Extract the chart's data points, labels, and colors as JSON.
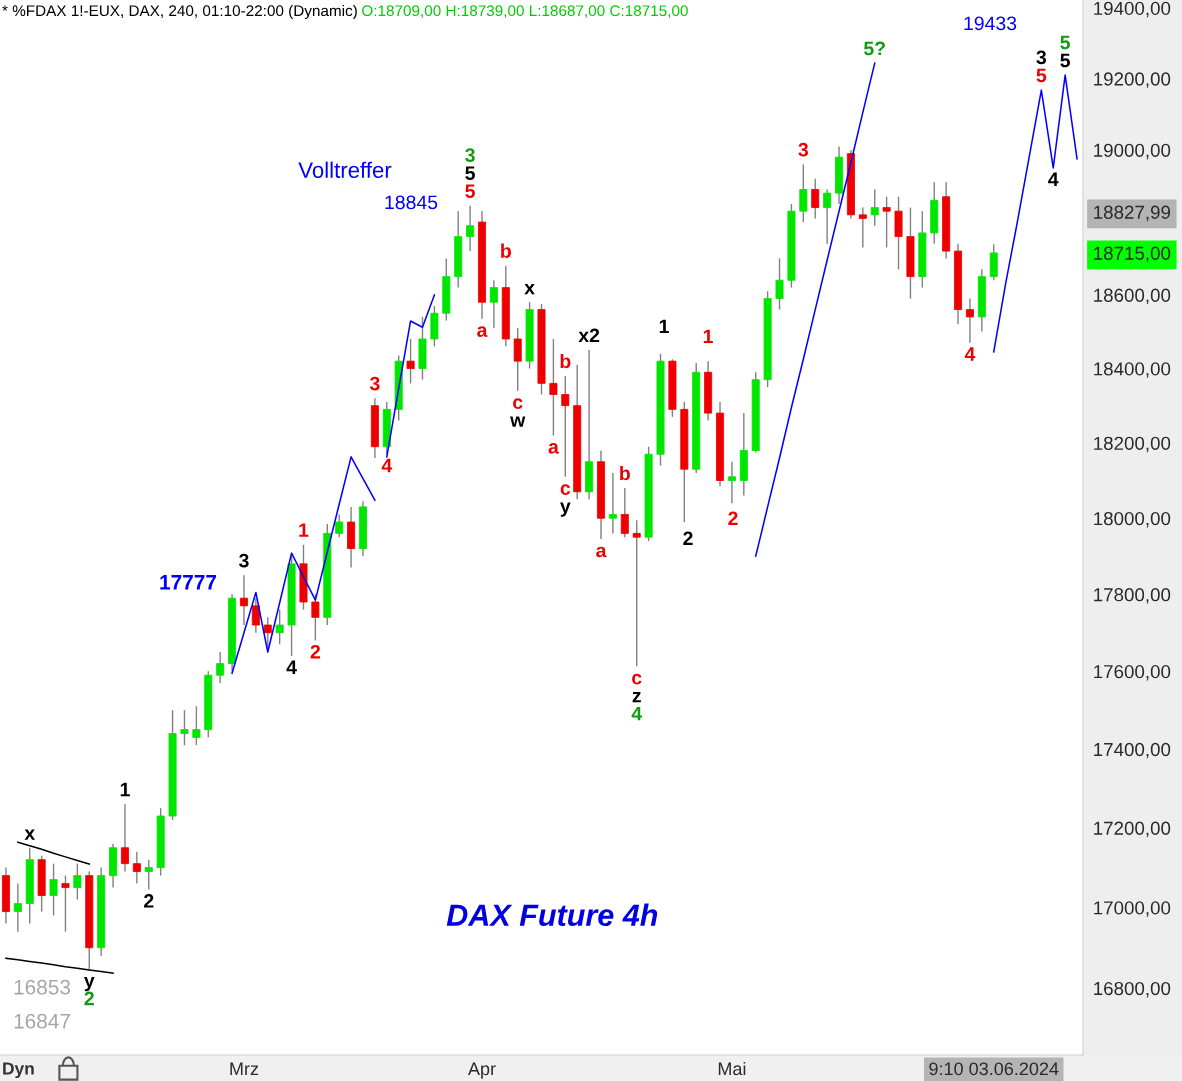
{
  "chart_data": {
    "type": "candlestick",
    "title": "* %FDAX 1!-EUX, DAX, 240, 01:10-22:00 (Dynamic)",
    "subtitle": "DAX Future 4h",
    "categories": [
      null,
      null,
      null,
      null,
      null,
      null,
      null,
      null,
      null,
      null,
      null,
      null,
      null,
      null,
      null,
      null,
      null,
      null,
      null,
      null,
      "Mrz",
      null,
      null,
      null,
      null,
      null,
      null,
      null,
      null,
      null,
      null,
      null,
      null,
      null,
      null,
      null,
      null,
      null,
      null,
      null,
      "Apr",
      null,
      null,
      null,
      null,
      null,
      null,
      null,
      null,
      null,
      null,
      null,
      null,
      null,
      null,
      null,
      null,
      null,
      null,
      null,
      null,
      "Mai",
      null,
      null,
      null,
      null,
      null,
      null,
      null,
      null,
      null,
      null,
      null,
      null,
      null,
      null,
      null,
      null,
      null,
      null,
      null,
      null,
      null,
      "9:10 03.06.2024",
      null,
      null,
      null,
      null,
      null,
      null,
      null
    ],
    "ohlc": [
      [
        17080,
        17100,
        16960,
        16990
      ],
      [
        16990,
        17060,
        16940,
        17010
      ],
      [
        17010,
        17150,
        16960,
        17120
      ],
      [
        17120,
        17130,
        16990,
        17030
      ],
      [
        17030,
        17110,
        16980,
        17070
      ],
      [
        17060,
        17080,
        16940,
        17050
      ],
      [
        17050,
        17110,
        17020,
        17080
      ],
      [
        17080,
        17090,
        16847,
        16900
      ],
      [
        16900,
        17100,
        16880,
        17080
      ],
      [
        17080,
        17160,
        17050,
        17150
      ],
      [
        17150,
        17260,
        17090,
        17110
      ],
      [
        17110,
        17140,
        17060,
        17090
      ],
      [
        17090,
        17120,
        17045,
        17100
      ],
      [
        17100,
        17250,
        17080,
        17230
      ],
      [
        17230,
        17500,
        17220,
        17440
      ],
      [
        17440,
        17500,
        17410,
        17450
      ],
      [
        17430,
        17510,
        17410,
        17450
      ],
      [
        17450,
        17600,
        17430,
        17590
      ],
      [
        17590,
        17650,
        17570,
        17620
      ],
      [
        17620,
        17800,
        17600,
        17790
      ],
      [
        17790,
        17850,
        17720,
        17770
      ],
      [
        17770,
        17790,
        17700,
        17720
      ],
      [
        17720,
        17740,
        17660,
        17700
      ],
      [
        17700,
        17760,
        17670,
        17720
      ],
      [
        17720,
        17900,
        17640,
        17880
      ],
      [
        17880,
        17930,
        17760,
        17780
      ],
      [
        17780,
        17800,
        17680,
        17740
      ],
      [
        17740,
        17985,
        17720,
        17960
      ],
      [
        17960,
        18010,
        17950,
        17990
      ],
      [
        17990,
        18030,
        17870,
        17920
      ],
      [
        17920,
        18045,
        17900,
        18030
      ],
      [
        18300,
        18320,
        18160,
        18190
      ],
      [
        18190,
        18310,
        18170,
        18290
      ],
      [
        18290,
        18435,
        18260,
        18420
      ],
      [
        18420,
        18480,
        18360,
        18400
      ],
      [
        18400,
        18540,
        18370,
        18480
      ],
      [
        18480,
        18570,
        18460,
        18550
      ],
      [
        18550,
        18700,
        18530,
        18650
      ],
      [
        18650,
        18830,
        18620,
        18760
      ],
      [
        18760,
        18845,
        18720,
        18790
      ],
      [
        18800,
        18830,
        18535,
        18580
      ],
      [
        18580,
        18640,
        18510,
        18620
      ],
      [
        18620,
        18680,
        18460,
        18480
      ],
      [
        18480,
        18510,
        18340,
        18420
      ],
      [
        18420,
        18580,
        18400,
        18560
      ],
      [
        18560,
        18575,
        18330,
        18360
      ],
      [
        18360,
        18480,
        18220,
        18330
      ],
      [
        18330,
        18380,
        18110,
        18300
      ],
      [
        18300,
        18410,
        18050,
        18070
      ],
      [
        18070,
        18450,
        18050,
        18150
      ],
      [
        18150,
        18180,
        17945,
        18000
      ],
      [
        18000,
        18120,
        17960,
        18010
      ],
      [
        18010,
        18080,
        17950,
        17960
      ],
      [
        17960,
        17995,
        17613,
        17950
      ],
      [
        17950,
        18190,
        17940,
        18170
      ],
      [
        18170,
        18440,
        18140,
        18420
      ],
      [
        18420,
        18425,
        18270,
        18290
      ],
      [
        18290,
        18310,
        17990,
        18130
      ],
      [
        18130,
        18415,
        18120,
        18390
      ],
      [
        18390,
        18420,
        18260,
        18280
      ],
      [
        18280,
        18310,
        18085,
        18100
      ],
      [
        18100,
        18150,
        18040,
        18110
      ],
      [
        18100,
        18280,
        18060,
        18180
      ],
      [
        18180,
        18390,
        18175,
        18370
      ],
      [
        18370,
        18610,
        18350,
        18590
      ],
      [
        18590,
        18700,
        18560,
        18640
      ],
      [
        18640,
        18850,
        18620,
        18830
      ],
      [
        18830,
        18960,
        18800,
        18890
      ],
      [
        18890,
        18920,
        18810,
        18840
      ],
      [
        18840,
        18890,
        18740,
        18880
      ],
      [
        18880,
        19010,
        18850,
        18980
      ],
      [
        18990,
        19000,
        18810,
        18820
      ],
      [
        18820,
        18840,
        18730,
        18810
      ],
      [
        18820,
        18890,
        18790,
        18840
      ],
      [
        18840,
        18870,
        18730,
        18830
      ],
      [
        18830,
        18870,
        18670,
        18760
      ],
      [
        18760,
        18840,
        18590,
        18650
      ],
      [
        18650,
        18830,
        18620,
        18770
      ],
      [
        18770,
        18910,
        18740,
        18860
      ],
      [
        18870,
        18910,
        18700,
        18720
      ],
      [
        18720,
        18740,
        18520,
        18560
      ],
      [
        18560,
        18590,
        18470,
        18540
      ],
      [
        18540,
        18670,
        18500,
        18650
      ],
      [
        18650,
        18739,
        18640,
        18715
      ],
      null,
      null,
      null,
      null,
      null,
      null,
      null
    ],
    "series": [
      {
        "type": "line",
        "color": "#0000ff",
        "values": [
          null,
          null,
          null,
          null,
          null,
          null,
          null,
          null,
          null,
          null,
          null,
          null,
          null,
          null,
          null,
          null,
          null,
          null,
          null,
          17595,
          17700,
          17805,
          17650,
          17778,
          17908,
          17846,
          17785,
          17911,
          18037,
          18163,
          18105,
          18048,
          null,
          null,
          null,
          null,
          null,
          null,
          null,
          null,
          null,
          null,
          null,
          null,
          null,
          null,
          null,
          null,
          null,
          null,
          null,
          null,
          null,
          null,
          null,
          null,
          null,
          null,
          null,
          null,
          null,
          null,
          null,
          null,
          null,
          null,
          null,
          null,
          null,
          null,
          null,
          null,
          null,
          null,
          null,
          null,
          null,
          null,
          null,
          null,
          null,
          null,
          null,
          null,
          null,
          null,
          null,
          null,
          null,
          null,
          null
        ]
      },
      {
        "type": "line",
        "color": "#0000ff",
        "values": [
          null,
          null,
          null,
          null,
          null,
          null,
          null,
          null,
          null,
          null,
          null,
          null,
          null,
          null,
          null,
          null,
          null,
          null,
          null,
          null,
          null,
          null,
          null,
          null,
          null,
          null,
          null,
          null,
          null,
          null,
          null,
          null,
          18163,
          18346,
          18529,
          18512,
          18600,
          null,
          null,
          null,
          null,
          null,
          null,
          null,
          null,
          null,
          null,
          null,
          null,
          null,
          null,
          null,
          null,
          null,
          null,
          null,
          null,
          null,
          null,
          null,
          null,
          null,
          null,
          null,
          null,
          null,
          null,
          null,
          null,
          null,
          null,
          null,
          null,
          null,
          null,
          null,
          null,
          null,
          null,
          null,
          null,
          null,
          null,
          null,
          null,
          null,
          null,
          null,
          null,
          null,
          null
        ]
      },
      {
        "type": "line",
        "color": "#0000ff",
        "values": [
          null,
          null,
          null,
          null,
          null,
          null,
          null,
          null,
          null,
          null,
          null,
          null,
          null,
          null,
          null,
          null,
          null,
          null,
          null,
          null,
          null,
          null,
          null,
          null,
          null,
          null,
          null,
          null,
          null,
          null,
          null,
          null,
          null,
          null,
          null,
          null,
          null,
          null,
          null,
          null,
          null,
          null,
          null,
          null,
          null,
          null,
          null,
          null,
          null,
          null,
          null,
          null,
          null,
          null,
          null,
          null,
          null,
          null,
          null,
          null,
          null,
          null,
          null,
          17900,
          18030,
          18160,
          18295,
          18425,
          18560,
          18695,
          18830,
          18965,
          19105,
          19244,
          null,
          null,
          null,
          null,
          null,
          null,
          null,
          null,
          null,
          null,
          null,
          null,
          null,
          null,
          null,
          null,
          null
        ]
      },
      {
        "type": "line",
        "color": "#0000ff",
        "values": [
          null,
          null,
          null,
          null,
          null,
          null,
          null,
          null,
          null,
          null,
          null,
          null,
          null,
          null,
          null,
          null,
          null,
          null,
          null,
          null,
          null,
          null,
          null,
          null,
          null,
          null,
          null,
          null,
          null,
          null,
          null,
          null,
          null,
          null,
          null,
          null,
          null,
          null,
          null,
          null,
          null,
          null,
          null,
          null,
          null,
          null,
          null,
          null,
          null,
          null,
          null,
          null,
          null,
          null,
          null,
          null,
          null,
          null,
          null,
          null,
          null,
          null,
          null,
          null,
          null,
          null,
          null,
          null,
          null,
          null,
          null,
          null,
          null,
          null,
          null,
          null,
          null,
          null,
          null,
          null,
          null,
          null,
          null,
          18445,
          18631,
          18803,
          18984,
          19168,
          18950,
          19210,
          18975
        ]
      },
      {
        "type": "line",
        "color": "#000000",
        "values": [
          null,
          17164,
          17155,
          17146,
          17136,
          17127,
          17118,
          17109,
          null,
          null,
          null,
          null,
          null,
          null,
          null,
          null,
          null,
          null,
          null,
          null,
          null,
          null,
          null,
          null,
          null,
          null,
          null,
          null,
          null,
          null,
          null,
          null,
          null,
          null,
          null,
          null,
          null,
          null,
          null,
          null,
          null,
          null,
          null,
          null,
          null,
          null,
          null,
          null,
          null,
          null,
          null,
          null,
          null,
          null,
          null,
          null,
          null,
          null,
          null,
          null,
          null,
          null,
          null,
          null,
          null,
          null,
          null,
          null,
          null,
          null,
          null,
          null,
          null,
          null,
          null,
          null,
          null,
          null,
          null,
          null,
          null,
          null,
          null,
          null,
          null,
          null,
          null,
          null,
          null,
          null,
          null
        ]
      },
      {
        "type": "line",
        "color": "#000000",
        "values": [
          16874,
          16870,
          16866,
          16862,
          16858,
          16853,
          16849,
          16845,
          16841,
          16837,
          null,
          null,
          null,
          null,
          null,
          null,
          null,
          null,
          null,
          null,
          null,
          null,
          null,
          null,
          null,
          null,
          null,
          null,
          null,
          null,
          null,
          null,
          null,
          null,
          null,
          null,
          null,
          null,
          null,
          null,
          null,
          null,
          null,
          null,
          null,
          null,
          null,
          null,
          null,
          null,
          null,
          null,
          null,
          null,
          null,
          null,
          null,
          null,
          null,
          null,
          null,
          null,
          null,
          null,
          null,
          null,
          null,
          null,
          null,
          null,
          null,
          null,
          null,
          null,
          null,
          null,
          null,
          null,
          null,
          null,
          null,
          null,
          null,
          null,
          null,
          null,
          null,
          null,
          null,
          null,
          null
        ]
      }
    ],
    "ylim": [
      16636,
      19423
    ],
    "yticks": [
      {
        "value": 16800,
        "label": "16800,00"
      },
      {
        "value": 17000,
        "label": "17000,00"
      },
      {
        "value": 17200,
        "label": "17200,00"
      },
      {
        "value": 17400,
        "label": "17400,00"
      },
      {
        "value": 17600,
        "label": "17600,00"
      },
      {
        "value": 17800,
        "label": "17800,00"
      },
      {
        "value": 18000,
        "label": "18000,00"
      },
      {
        "value": 18200,
        "label": "18200,00"
      },
      {
        "value": 18400,
        "label": "18400,00"
      },
      {
        "value": 18600,
        "label": "18600,00"
      },
      {
        "value": 18715,
        "label": "18715,00"
      },
      {
        "value": 18827.99,
        "label": "18827,99"
      },
      {
        "value": 19000,
        "label": "19000,00"
      },
      {
        "value": 19200,
        "label": "19200,00"
      },
      {
        "value": 19400,
        "label": "19400,00"
      }
    ],
    "log": true,
    "annotations": [
      "O:18709,00 H:18739,00 L:18687,00 C:18715,00",
      "Dyn",
      "16853",
      "16847",
      "17777",
      "Volltreffer",
      "18845",
      "19433",
      "1",
      "2",
      "1",
      "2",
      {
        "text": "x",
        "y": 17150
      },
      {
        "text": "y",
        "y": 16847
      },
      {
        "text": "2",
        "y": 16847
      },
      {
        "text": "1",
        "y": 17260
      },
      {
        "text": "2",
        "y": 17045
      },
      {
        "text": "3",
        "y": 17850
      },
      {
        "text": "4",
        "y": 17640
      },
      {
        "text": "1",
        "y": 17930
      },
      {
        "text": "2",
        "y": 17680
      },
      {
        "text": "3",
        "y": 18320
      },
      {
        "text": "4",
        "y": 18170
      },
      {
        "text": "5",
        "y": 18845
      },
      {
        "text": "5",
        "y": 18845
      },
      {
        "text": "3",
        "y": 18845
      },
      {
        "text": "a",
        "y": 18535
      },
      {
        "text": "b",
        "y": 18680
      },
      {
        "text": "c",
        "y": 18340
      },
      {
        "text": "w",
        "y": 18340
      },
      {
        "text": "x",
        "y": 18580
      },
      {
        "text": "a",
        "y": 18220
      },
      {
        "text": "b",
        "y": 18380
      },
      {
        "text": "c",
        "y": 18110
      },
      {
        "text": "y",
        "y": 18110
      },
      {
        "text": "x2",
        "y": 18450
      },
      {
        "text": "a",
        "y": 17945
      },
      {
        "text": "b",
        "y": 18080
      },
      {
        "text": "c",
        "y": 17613
      },
      {
        "text": "z",
        "y": 17613
      },
      {
        "text": "4",
        "y": 17613
      },
      {
        "text": "3",
        "y": 18960
      },
      {
        "text": "5?",
        "y": 19244
      },
      {
        "text": "4",
        "y": 18470
      },
      {
        "text": "5",
        "y": 19168
      },
      {
        "text": "3",
        "y": 19168
      },
      {
        "text": "4",
        "y": 18950
      },
      {
        "text": "5",
        "y": 19210
      },
      {
        "text": "5",
        "y": 19210
      }
    ]
  }
}
